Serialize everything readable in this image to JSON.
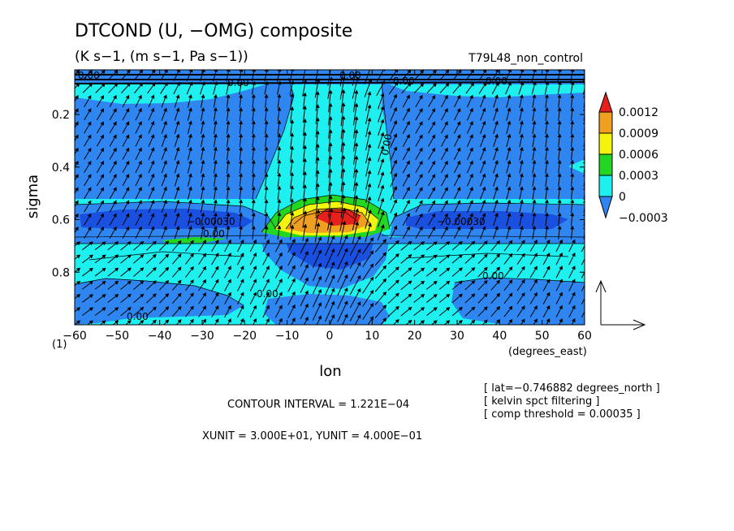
{
  "header": {
    "title": "DTCOND (U, −OMG) composite",
    "units": "(K s−1, (m s−1, Pa s−1))",
    "run_name": "T79L48_non_control"
  },
  "chart_data": {
    "type": "heatmap",
    "title": "DTCOND (U, −OMG) composite",
    "subtitle": "(K s−1, (m s−1, Pa s−1))",
    "xlabel": "lon",
    "xunits": "(degrees_east)",
    "ylabel": "sigma",
    "xlim": [
      -60,
      60
    ],
    "ylim": [
      1.0,
      0.03
    ],
    "x_ticks": [
      -60,
      -50,
      -40,
      -30,
      -20,
      -10,
      0,
      10,
      20,
      30,
      40,
      50,
      60
    ],
    "x_tick_labels": [
      "−60",
      "−50",
      "−40",
      "−30",
      "−20",
      "−10",
      "0",
      "10",
      "20",
      "30",
      "40",
      "50",
      "60"
    ],
    "y_ticks": [
      0.2,
      0.4,
      0.6,
      0.8
    ],
    "y_tick_labels": [
      "0.2",
      "0.4",
      "0.6",
      "0.8"
    ],
    "corner_label": "(1)",
    "colorbar": {
      "levels": [
        0.0012,
        0.0009,
        0.0006,
        0.0003,
        0,
        -0.0003
      ],
      "labels": [
        "0.0012",
        "0.0009",
        "0.0006",
        "0.0003",
        "0",
        "−0.0003"
      ],
      "colors": [
        "#e8201c",
        "#f0a020",
        "#f4f40c",
        "#22d622",
        "#1ef0f0",
        "#2f86f0"
      ]
    },
    "contour_labels": [
      "0.00",
      "0.00",
      "0.00",
      "0.00",
      "0.00",
      "−0.00030",
      "0.00",
      "0.00",
      "−0.00030",
      "0.00",
      "0.00",
      "0.00"
    ],
    "vector_field": "U (m s−1), −OMG (Pa s−1)",
    "contour_interval": "CONTOUR INTERVAL = 1.221E−04",
    "unit_vectors": "XUNIT = 3.000E+01, YUNIT = 4.000E−01",
    "notes": [
      "[ lat=−0.746882 degrees_north ]",
      "[ kelvin spct filtering ]",
      "[ comp threshold = 0.00035 ]"
    ]
  },
  "colors": {
    "background": "#ffffff",
    "positive_small": "#1ef0f0",
    "negative": "#2f86f0",
    "strong_negative": "#1a50e0",
    "axis": "#000000"
  }
}
